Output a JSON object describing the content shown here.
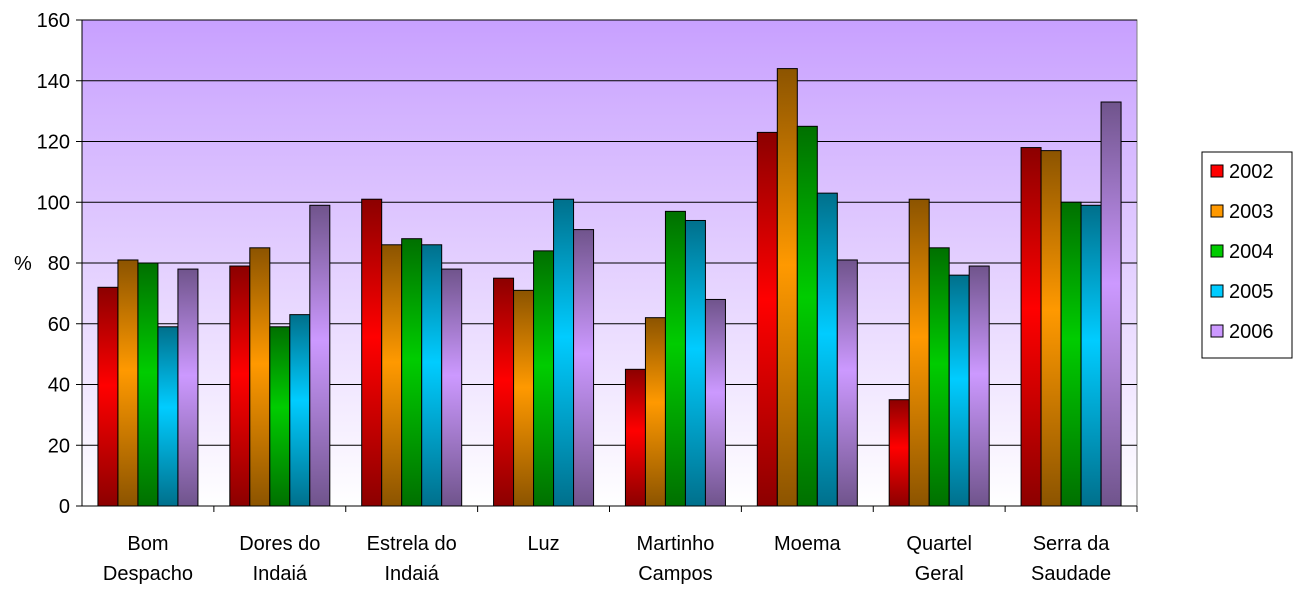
{
  "chart_data": {
    "type": "bar",
    "title": "",
    "xlabel": "",
    "ylabel": "%",
    "ylim": [
      0,
      160
    ],
    "yticks": [
      0,
      20,
      40,
      60,
      80,
      100,
      120,
      140,
      160
    ],
    "grid": true,
    "legend_position": "right",
    "categories": [
      [
        "Bom",
        "Despacho"
      ],
      [
        "Dores do",
        "Indaiá"
      ],
      [
        "Estrela do",
        "Indaiá"
      ],
      [
        "Luz"
      ],
      [
        "Martinho",
        "Campos"
      ],
      [
        "Moema"
      ],
      [
        "Quartel",
        "Geral"
      ],
      [
        "Serra da",
        "Saudade"
      ]
    ],
    "series": [
      {
        "name": "2002",
        "color": "#ff0000",
        "values": [
          72,
          79,
          101,
          75,
          45,
          123,
          35,
          118
        ]
      },
      {
        "name": "2003",
        "color": "#ff9900",
        "values": [
          81,
          85,
          86,
          71,
          62,
          144,
          101,
          117
        ]
      },
      {
        "name": "2004",
        "color": "#00cc00",
        "values": [
          80,
          59,
          88,
          84,
          97,
          125,
          85,
          100
        ]
      },
      {
        "name": "2005",
        "color": "#00ccff",
        "values": [
          59,
          63,
          86,
          101,
          94,
          103,
          76,
          99
        ]
      },
      {
        "name": "2006",
        "color": "#cc99ff",
        "values": [
          78,
          99,
          78,
          91,
          68,
          81,
          79,
          133
        ]
      }
    ],
    "plot_background": [
      "#c8a0ff",
      "#ffffff"
    ]
  }
}
